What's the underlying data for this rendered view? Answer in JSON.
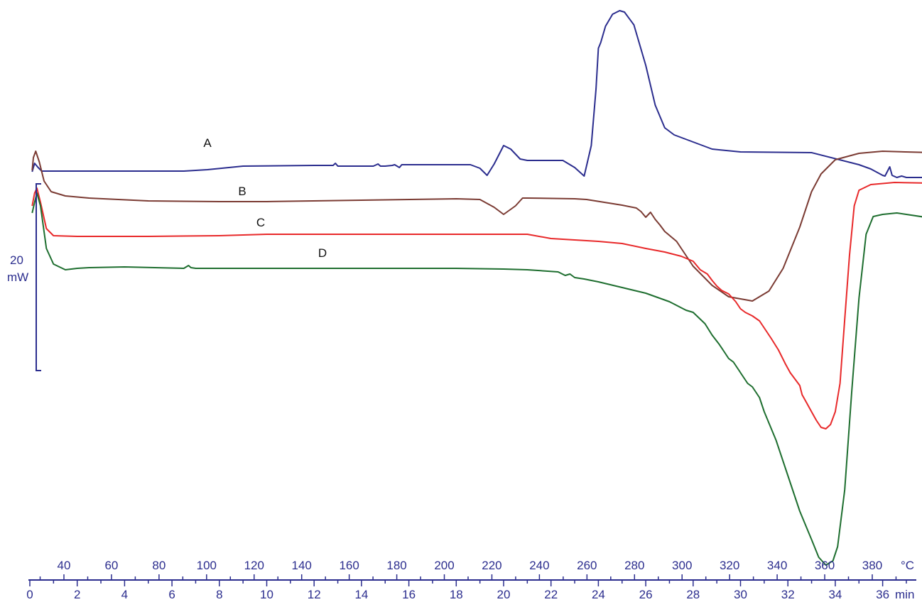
{
  "chart_data": {
    "type": "line",
    "title": "",
    "scale_bar": {
      "value": "20",
      "unit": "mW"
    },
    "axes": {
      "time": {
        "unit": "min",
        "ticks": [
          0,
          2,
          4,
          6,
          8,
          10,
          12,
          14,
          16,
          18,
          20,
          22,
          24,
          26,
          28,
          30,
          32,
          34,
          36
        ],
        "range": [
          0,
          37
        ]
      },
      "temperature": {
        "unit": "°C",
        "ticks": [
          40,
          60,
          80,
          100,
          120,
          140,
          160,
          180,
          200,
          220,
          240,
          260,
          280,
          300,
          320,
          340,
          360,
          380
        ]
      }
    },
    "series": [
      {
        "name": "A",
        "color": "#2b2d8e",
        "points": [
          [
            0.1,
            242
          ],
          [
            0.2,
            230
          ],
          [
            0.35,
            236
          ],
          [
            0.5,
            241
          ],
          [
            1,
            241
          ],
          [
            3,
            241
          ],
          [
            5,
            241
          ],
          [
            6.5,
            241
          ],
          [
            7.5,
            239
          ],
          [
            9,
            234
          ],
          [
            12,
            233
          ],
          [
            12.8,
            233
          ],
          [
            12.9,
            230
          ],
          [
            13,
            234
          ],
          [
            14.5,
            234
          ],
          [
            14.7,
            231
          ],
          [
            14.8,
            234
          ],
          [
            15,
            234
          ],
          [
            15.3,
            233
          ],
          [
            15.4,
            232
          ],
          [
            15.6,
            236
          ],
          [
            15.7,
            232
          ],
          [
            16,
            232
          ],
          [
            18.6,
            232
          ],
          [
            19,
            237
          ],
          [
            19.3,
            247
          ],
          [
            19.6,
            231
          ],
          [
            20,
            205
          ],
          [
            20.3,
            210
          ],
          [
            20.7,
            224
          ],
          [
            21,
            226
          ],
          [
            22.5,
            226
          ],
          [
            23,
            236
          ],
          [
            23.4,
            248
          ],
          [
            23.7,
            205
          ],
          [
            23.9,
            125
          ],
          [
            24,
            68
          ],
          [
            24.1,
            60
          ],
          [
            24.3,
            37
          ],
          [
            24.6,
            20
          ],
          [
            24.9,
            15
          ],
          [
            25.1,
            17
          ],
          [
            25.5,
            35
          ],
          [
            26,
            92
          ],
          [
            26.4,
            148
          ],
          [
            26.8,
            180
          ],
          [
            27.2,
            190
          ],
          [
            28,
            200
          ],
          [
            28.8,
            210
          ],
          [
            30,
            214
          ],
          [
            33,
            215
          ],
          [
            35,
            232
          ],
          [
            35.5,
            238
          ],
          [
            36,
            247
          ],
          [
            36.1,
            248
          ],
          [
            36.3,
            235
          ],
          [
            36.4,
            247
          ],
          [
            36.6,
            250
          ],
          [
            36.8,
            248
          ],
          [
            37,
            250
          ],
          [
            38,
            250
          ]
        ]
      },
      {
        "name": "B",
        "color": "#7b3b33",
        "points": [
          [
            0.1,
            240
          ],
          [
            0.15,
            222
          ],
          [
            0.25,
            213
          ],
          [
            0.4,
            228
          ],
          [
            0.6,
            255
          ],
          [
            0.9,
            270
          ],
          [
            1.5,
            276
          ],
          [
            2.5,
            279
          ],
          [
            5,
            283
          ],
          [
            8,
            284
          ],
          [
            10,
            284
          ],
          [
            14,
            282
          ],
          [
            18,
            280
          ],
          [
            19,
            281
          ],
          [
            19.6,
            292
          ],
          [
            20,
            302
          ],
          [
            20.5,
            290
          ],
          [
            20.8,
            279
          ],
          [
            21,
            279
          ],
          [
            23,
            280
          ],
          [
            23.5,
            281
          ],
          [
            25,
            289
          ],
          [
            25.6,
            293
          ],
          [
            25.8,
            298
          ],
          [
            26,
            306
          ],
          [
            26.2,
            299
          ],
          [
            26.4,
            309
          ],
          [
            26.6,
            317
          ],
          [
            26.8,
            326
          ],
          [
            27.3,
            340
          ],
          [
            28,
            375
          ],
          [
            28.8,
            402
          ],
          [
            29.5,
            418
          ],
          [
            30.5,
            424
          ],
          [
            31.2,
            410
          ],
          [
            31.8,
            378
          ],
          [
            32.5,
            320
          ],
          [
            33,
            270
          ],
          [
            33.4,
            245
          ],
          [
            34,
            225
          ],
          [
            35,
            216
          ],
          [
            36,
            213
          ],
          [
            38,
            215
          ]
        ]
      },
      {
        "name": "C",
        "color": "#e8292a",
        "points": [
          [
            0.1,
            290
          ],
          [
            0.2,
            272
          ],
          [
            0.3,
            265
          ],
          [
            0.45,
            285
          ],
          [
            0.7,
            322
          ],
          [
            1,
            332
          ],
          [
            2,
            333
          ],
          [
            5,
            333
          ],
          [
            8,
            332
          ],
          [
            10,
            330
          ],
          [
            13,
            330
          ],
          [
            16,
            330
          ],
          [
            19,
            330
          ],
          [
            21,
            330
          ],
          [
            22,
            336
          ],
          [
            24,
            340
          ],
          [
            25,
            343
          ],
          [
            26,
            350
          ],
          [
            26.8,
            355
          ],
          [
            27.5,
            361
          ],
          [
            28,
            368
          ],
          [
            28.3,
            380
          ],
          [
            28.6,
            386
          ],
          [
            28.8,
            395
          ],
          [
            29,
            403
          ],
          [
            29.2,
            409
          ],
          [
            29.5,
            414
          ],
          [
            29.8,
            425
          ],
          [
            30,
            435
          ],
          [
            30.2,
            440
          ],
          [
            30.5,
            445
          ],
          [
            30.8,
            452
          ],
          [
            31,
            462
          ],
          [
            31.3,
            477
          ],
          [
            31.6,
            493
          ],
          [
            31.9,
            513
          ],
          [
            32.1,
            525
          ],
          [
            32.3,
            534
          ],
          [
            32.5,
            543
          ],
          [
            32.6,
            556
          ],
          [
            32.8,
            568
          ],
          [
            33,
            580
          ],
          [
            33.2,
            592
          ],
          [
            33.4,
            602
          ],
          [
            33.6,
            604
          ],
          [
            33.8,
            598
          ],
          [
            34,
            580
          ],
          [
            34.2,
            540
          ],
          [
            34.4,
            450
          ],
          [
            34.6,
            360
          ],
          [
            34.8,
            290
          ],
          [
            35,
            268
          ],
          [
            35.5,
            260
          ],
          [
            36.5,
            257
          ],
          [
            38,
            258
          ]
        ]
      },
      {
        "name": "D",
        "color": "#1e6e2f",
        "points": [
          [
            0.1,
            300
          ],
          [
            0.2,
            285
          ],
          [
            0.3,
            272
          ],
          [
            0.45,
            290
          ],
          [
            0.7,
            350
          ],
          [
            1,
            372
          ],
          [
            1.5,
            380
          ],
          [
            2,
            378
          ],
          [
            2.5,
            377
          ],
          [
            4,
            376
          ],
          [
            6.5,
            378
          ],
          [
            6.7,
            374
          ],
          [
            6.8,
            377
          ],
          [
            7,
            378
          ],
          [
            10,
            378
          ],
          [
            14,
            378
          ],
          [
            18,
            378
          ],
          [
            20,
            379
          ],
          [
            21,
            380
          ],
          [
            22.3,
            383
          ],
          [
            22.6,
            388
          ],
          [
            22.8,
            386
          ],
          [
            23,
            391
          ],
          [
            23.4,
            393
          ],
          [
            24,
            397
          ],
          [
            25,
            405
          ],
          [
            26,
            413
          ],
          [
            27,
            425
          ],
          [
            27.7,
            437
          ],
          [
            28,
            440
          ],
          [
            28.5,
            456
          ],
          [
            28.8,
            472
          ],
          [
            29.1,
            485
          ],
          [
            29.3,
            495
          ],
          [
            29.5,
            505
          ],
          [
            29.7,
            510
          ],
          [
            29.9,
            520
          ],
          [
            30.1,
            530
          ],
          [
            30.3,
            540
          ],
          [
            30.5,
            545
          ],
          [
            30.8,
            560
          ],
          [
            31,
            580
          ],
          [
            31.5,
            620
          ],
          [
            32,
            670
          ],
          [
            32.5,
            720
          ],
          [
            33,
            760
          ],
          [
            33.3,
            785
          ],
          [
            33.6,
            796
          ],
          [
            33.9,
            790
          ],
          [
            34.1,
            770
          ],
          [
            34.4,
            690
          ],
          [
            34.7,
            550
          ],
          [
            35,
            420
          ],
          [
            35.3,
            330
          ],
          [
            35.6,
            305
          ],
          [
            36,
            302
          ],
          [
            36.6,
            300
          ],
          [
            37,
            302
          ],
          [
            38,
            307
          ]
        ]
      }
    ],
    "legend": "inline",
    "grid": false
  }
}
